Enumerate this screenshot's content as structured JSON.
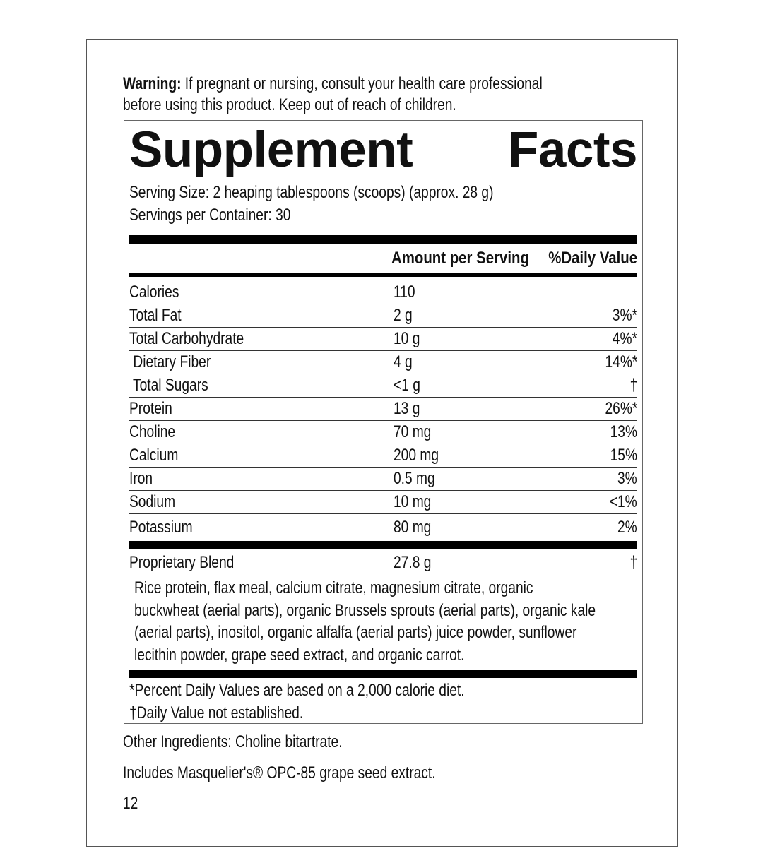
{
  "warning": {
    "label": "Warning:",
    "text": " If pregnant or nursing, consult your health care professional",
    "text2": "before using this product. Keep out of reach of children."
  },
  "facts": {
    "title_1": "Supplement",
    "title_2": "Facts",
    "serving_size": "Serving Size: 2 heaping tablespoons (scoops) (approx. 28 g)",
    "servings_per_container": "Servings per Container: 30",
    "col_amount": "Amount per Serving",
    "col_dv": "%Daily Value",
    "rows": [
      {
        "name": "Calories",
        "amount": "110",
        "dv": ""
      },
      {
        "name": "Total Fat",
        "amount": "2 g",
        "dv": "3%*"
      },
      {
        "name": "Total Carbohydrate",
        "amount": "10 g",
        "dv": "4%*"
      },
      {
        "name": " Dietary Fiber",
        "amount": "4 g",
        "dv": "14%*"
      },
      {
        "name": " Total Sugars",
        "amount": "<1 g",
        "dv": "†"
      },
      {
        "name": "Protein",
        "amount": "13 g",
        "dv": "26%*"
      },
      {
        "name": "Choline",
        "amount": "70 mg",
        "dv": "13%"
      },
      {
        "name": "Calcium",
        "amount": "200 mg",
        "dv": "15%"
      },
      {
        "name": "Iron",
        "amount": "0.5 mg",
        "dv": "3%"
      },
      {
        "name": "Sodium",
        "amount": "10 mg",
        "dv": "<1%"
      },
      {
        "name": "Potassium",
        "amount": "80 mg",
        "dv": "2%"
      }
    ],
    "blend": {
      "name": "Proprietary Blend",
      "amount": "27.8 g",
      "dv": "†",
      "ingredients": [
        "Rice protein, flax meal, calcium citrate, magnesium citrate, organic",
        "buckwheat (aerial parts), organic Brussels sprouts (aerial parts), organic kale",
        "(aerial parts), inositol, organic alfalfa (aerial parts) juice powder, sunflower",
        "lecithin powder, grape seed extract, and organic carrot."
      ]
    },
    "footnote_1": "*Percent Daily Values are based on a 2,000 calorie diet.",
    "footnote_2": "†Daily Value not established."
  },
  "other_ingredients": "Other Ingredients: Choline bitartrate.",
  "includes": "Includes Masquelier's® OPC-85 grape seed extract.",
  "page_number": "12"
}
